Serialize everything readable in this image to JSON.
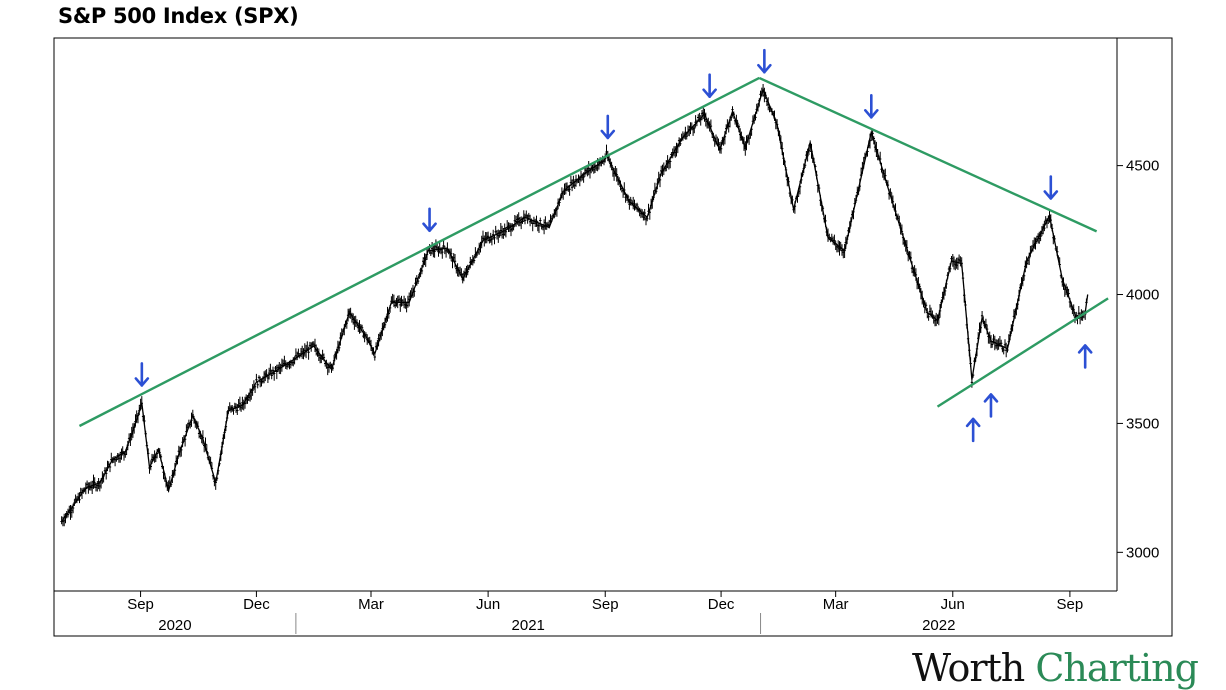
{
  "title": "S&P 500 Index (SPX)",
  "logo": {
    "word1": "Worth",
    "word2": "Charting"
  },
  "colors": {
    "price": "#000000",
    "trendline": "#2e9b63",
    "arrow": "#2c50d4",
    "frame": "#000000"
  },
  "chart_data": {
    "type": "line",
    "series": [
      {
        "values": [
          [
            "2020-07-01",
            3120
          ],
          [
            "2020-07-10",
            3180
          ],
          [
            "2020-07-20",
            3250
          ],
          [
            "2020-07-31",
            3270
          ],
          [
            "2020-08-10",
            3360
          ],
          [
            "2020-08-20",
            3390
          ],
          [
            "2020-08-28",
            3500
          ],
          [
            "2020-09-02",
            3580
          ],
          [
            "2020-09-08",
            3330
          ],
          [
            "2020-09-15",
            3400
          ],
          [
            "2020-09-23",
            3240
          ],
          [
            "2020-10-01",
            3380
          ],
          [
            "2020-10-12",
            3530
          ],
          [
            "2020-10-20",
            3440
          ],
          [
            "2020-10-30",
            3270
          ],
          [
            "2020-11-09",
            3550
          ],
          [
            "2020-11-20",
            3570
          ],
          [
            "2020-12-01",
            3660
          ],
          [
            "2020-12-15",
            3700
          ],
          [
            "2020-12-31",
            3750
          ],
          [
            "2021-01-15",
            3800
          ],
          [
            "2021-01-29",
            3710
          ],
          [
            "2021-02-12",
            3930
          ],
          [
            "2021-02-26",
            3830
          ],
          [
            "2021-03-04",
            3770
          ],
          [
            "2021-03-17",
            3970
          ],
          [
            "2021-03-31",
            3970
          ],
          [
            "2021-04-15",
            4170
          ],
          [
            "2021-04-30",
            4180
          ],
          [
            "2021-05-12",
            4060
          ],
          [
            "2021-05-28",
            4210
          ],
          [
            "2021-06-15",
            4250
          ],
          [
            "2021-06-30",
            4300
          ],
          [
            "2021-07-19",
            4260
          ],
          [
            "2021-07-30",
            4400
          ],
          [
            "2021-08-16",
            4470
          ],
          [
            "2021-08-31",
            4520
          ],
          [
            "2021-09-02",
            4540
          ],
          [
            "2021-09-20",
            4360
          ],
          [
            "2021-10-04",
            4300
          ],
          [
            "2021-10-15",
            4470
          ],
          [
            "2021-11-01",
            4610
          ],
          [
            "2021-11-18",
            4700
          ],
          [
            "2021-11-30",
            4560
          ],
          [
            "2021-12-10",
            4710
          ],
          [
            "2021-12-20",
            4570
          ],
          [
            "2022-01-03",
            4796
          ],
          [
            "2022-01-14",
            4660
          ],
          [
            "2022-01-27",
            4330
          ],
          [
            "2022-02-09",
            4590
          ],
          [
            "2022-02-23",
            4220
          ],
          [
            "2022-03-08",
            4170
          ],
          [
            "2022-03-29",
            4630
          ],
          [
            "2022-04-12",
            4400
          ],
          [
            "2022-04-29",
            4130
          ],
          [
            "2022-05-12",
            3930
          ],
          [
            "2022-05-20",
            3900
          ],
          [
            "2022-05-31",
            4130
          ],
          [
            "2022-06-08",
            4120
          ],
          [
            "2022-06-16",
            3670
          ],
          [
            "2022-06-24",
            3910
          ],
          [
            "2022-07-01",
            3820
          ],
          [
            "2022-07-14",
            3790
          ],
          [
            "2022-07-29",
            4130
          ],
          [
            "2022-08-16",
            4305
          ],
          [
            "2022-08-26",
            4060
          ],
          [
            "2022-09-06",
            3910
          ],
          [
            "2022-09-13",
            3930
          ],
          [
            "2022-09-15",
            4000
          ]
        ]
      }
    ],
    "x_axis": {
      "type": "date",
      "range": [
        "2020-06-25",
        "2022-10-08"
      ],
      "month_ticks": [
        {
          "date": "2020-09-01",
          "label": "Sep"
        },
        {
          "date": "2020-12-01",
          "label": "Dec"
        },
        {
          "date": "2021-03-01",
          "label": "Mar"
        },
        {
          "date": "2021-06-01",
          "label": "Jun"
        },
        {
          "date": "2021-09-01",
          "label": "Sep"
        },
        {
          "date": "2021-12-01",
          "label": "Dec"
        },
        {
          "date": "2022-03-01",
          "label": "Mar"
        },
        {
          "date": "2022-06-01",
          "label": "Jun"
        },
        {
          "date": "2022-09-01",
          "label": "Sep"
        }
      ],
      "years": [
        {
          "label": "2020",
          "start": "2020-06-25",
          "end": "2021-01-01"
        },
        {
          "label": "2021",
          "start": "2021-01-01",
          "end": "2022-01-01"
        },
        {
          "label": "2022",
          "start": "2022-01-01",
          "end": "2022-10-08"
        }
      ]
    },
    "y_axis": {
      "range": [
        2850,
        4995
      ],
      "ticks": [
        3000,
        3500,
        4000,
        4500
      ],
      "tick_labels": [
        "3000",
        "3500",
        "4000",
        "4500"
      ],
      "position": "right"
    },
    "trendlines": [
      {
        "from": [
          "2020-07-15",
          3490
        ],
        "to": [
          "2021-12-31",
          4840
        ]
      },
      {
        "from": [
          "2021-12-31",
          4840
        ],
        "to": [
          "2022-09-22",
          4245
        ]
      },
      {
        "from": [
          "2022-05-20",
          3565
        ],
        "to": [
          "2022-10-01",
          3985
        ]
      }
    ],
    "arrows": [
      {
        "date": "2020-09-02",
        "value": 3690,
        "direction": "down"
      },
      {
        "date": "2021-04-16",
        "value": 4290,
        "direction": "down"
      },
      {
        "date": "2021-09-03",
        "value": 4650,
        "direction": "down"
      },
      {
        "date": "2021-11-22",
        "value": 4810,
        "direction": "down"
      },
      {
        "date": "2022-01-04",
        "value": 4905,
        "direction": "down"
      },
      {
        "date": "2022-03-29",
        "value": 4730,
        "direction": "down"
      },
      {
        "date": "2022-08-17",
        "value": 4415,
        "direction": "down"
      },
      {
        "date": "2022-06-17",
        "value": 3475,
        "direction": "up"
      },
      {
        "date": "2022-07-01",
        "value": 3570,
        "direction": "up"
      },
      {
        "date": "2022-09-13",
        "value": 3760,
        "direction": "up"
      }
    ],
    "grid": false,
    "legend": "none"
  }
}
